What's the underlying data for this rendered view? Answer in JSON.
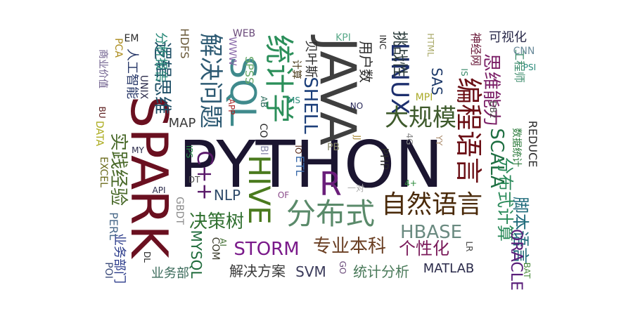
{
  "words": [
    {
      "t": "PYTHON",
      "c": "#1b1530"
    },
    {
      "t": "SPARK",
      "c": "#6a1020"
    },
    {
      "t": "JAVA",
      "c": "#3f3f3f"
    },
    {
      "t": "SQL",
      "c": "#3f8a8c"
    },
    {
      "t": "HIVE",
      "c": "#4a7a1e"
    },
    {
      "t": "R",
      "c": "#6a1e7a"
    },
    {
      "t": "统计学",
      "c": "#2b8f5a"
    },
    {
      "t": "LINUX",
      "c": "#1d2f6e"
    },
    {
      "t": "分布式",
      "c": "#5a8a6a"
    },
    {
      "t": "自然语言",
      "c": "#4a2a0a"
    },
    {
      "t": "编程语言",
      "c": "#6a0e14"
    },
    {
      "t": "大规模",
      "c": "#3e5a2c"
    },
    {
      "t": "解决问题",
      "c": "#2d5a73"
    },
    {
      "t": "SHELL",
      "c": "#1c3f7a"
    },
    {
      "t": "逻辑思维",
      "c": "#1e4f66"
    },
    {
      "t": "实践经验",
      "c": "#4a6a2a"
    },
    {
      "t": "SCALA",
      "c": "#1e6f42"
    },
    {
      "t": "思维能力",
      "c": "#7a1e66"
    },
    {
      "t": "专业本科",
      "c": "#6a3e22"
    },
    {
      "t": "HBASE",
      "c": "#6a8a80"
    },
    {
      "t": "STORM",
      "c": "#7a1a8a"
    },
    {
      "t": "个性化",
      "c": "#7a1a5a"
    },
    {
      "t": "决策树",
      "c": "#2f6f2f"
    },
    {
      "t": "分布式计算",
      "c": "#2a8a5a"
    },
    {
      "t": "脚本语言",
      "c": "#1e6a7a"
    },
    {
      "t": "ORACLE",
      "c": "#5a1e7a"
    },
    {
      "t": "MYSQL",
      "c": "#1e6a3a"
    },
    {
      "t": "C++",
      "c": "#5a1a6a"
    },
    {
      "t": "NLP",
      "c": "#2e4a6a"
    },
    {
      "t": "SAS",
      "c": "#1e3a6a"
    },
    {
      "t": "MAP",
      "c": "#3a3a3a"
    },
    {
      "t": "SVM",
      "c": "#3a3a5a"
    },
    {
      "t": "解决方案",
      "c": "#3a3a3a"
    },
    {
      "t": "统计分析",
      "c": "#4a7a5a"
    },
    {
      "t": "MATLAB",
      "c": "#2a2a4a"
    },
    {
      "t": "用户数",
      "c": "#2a2a2a"
    },
    {
      "t": "挑战性",
      "c": "#2a3a3a"
    },
    {
      "t": "业务部门",
      "c": "#2a3a8a"
    },
    {
      "t": "业务部",
      "c": "#3a6a5a"
    },
    {
      "t": "分析报告",
      "c": "#2a8a7a"
    },
    {
      "t": "人工智能",
      "c": "#2a3a6a"
    },
    {
      "t": "HDFS",
      "c": "#6a5a3a"
    },
    {
      "t": "WEB",
      "c": "#6a4a7a"
    },
    {
      "t": "WWW",
      "c": "#8a6aaa"
    },
    {
      "t": "SPSS",
      "c": "#6aaa6a"
    },
    {
      "t": "可视化",
      "c": "#2a2a4a"
    },
    {
      "t": "神经网",
      "c": "#6a1a3a"
    },
    {
      "t": "工程师",
      "c": "#3a8a6a"
    },
    {
      "t": "数据统计",
      "c": "#2a7a3a"
    },
    {
      "t": "REDUCE",
      "c": "#2a2a2a"
    },
    {
      "t": "EXCEL",
      "c": "#6a6a1a"
    },
    {
      "t": "DATA",
      "c": "#aaaa1a"
    },
    {
      "t": "PERL",
      "c": "#4a6a8a"
    },
    {
      "t": "POI",
      "c": "#3a4a7a"
    },
    {
      "t": "商业价值",
      "c": "#6a5a8a"
    },
    {
      "t": "PCA",
      "c": "#aa8a1a"
    },
    {
      "t": "EM",
      "c": "#2a2a2a"
    },
    {
      "t": "UNIX",
      "c": "#2a2a4a"
    },
    {
      "t": "BU",
      "c": "#5a1a1a"
    },
    {
      "t": "GBDT",
      "c": "#8a8a8a"
    },
    {
      "t": "API",
      "c": "#2a2a4a"
    },
    {
      "t": "DT",
      "c": "#4a4a4a"
    },
    {
      "t": "DL",
      "c": "#2a2a2a"
    },
    {
      "t": "COM",
      "c": "#3a3a2a"
    },
    {
      "t": "AI",
      "c": "#3a6a2a"
    },
    {
      "t": "APP",
      "c": "#aa2a2a"
    },
    {
      "t": "MY",
      "c": "#2a2a4a"
    },
    {
      "t": "IPS",
      "c": "#2a8a4a"
    },
    {
      "t": "OF",
      "c": "#8a4a8a"
    },
    {
      "t": "GO",
      "c": "#6a4a7a"
    },
    {
      "t": "ETL",
      "c": "#3a6aaa"
    },
    {
      "t": "IO",
      "c": "#5a2a1a"
    },
    {
      "t": "BI",
      "c": "#8a8aaa"
    },
    {
      "t": "AB",
      "c": "#2a6a5a"
    },
    {
      "t": "CO",
      "c": "#2a2a2a"
    },
    {
      "t": "MS",
      "c": "#2a8a7a"
    },
    {
      "t": "PB",
      "c": "#8a8a6a"
    },
    {
      "t": "NO",
      "c": "#2a2a5a"
    },
    {
      "t": "JJ",
      "c": "#aa8a3a"
    },
    {
      "t": "PHP",
      "c": "#2a2a2a"
    },
    {
      "t": "4G",
      "c": "#8a8a8a"
    },
    {
      "t": "4+",
      "c": "#2a8a3a"
    },
    {
      "t": "一对一",
      "c": "#aaaaaa"
    },
    {
      "t": "KPI",
      "c": "#5aaa8a"
    },
    {
      "t": "MPI",
      "c": "#aaaa2a"
    },
    {
      "t": "INC",
      "c": "#2a2a2a"
    },
    {
      "t": "HTML",
      "c": "#aaaa6a"
    },
    {
      "t": "IS",
      "c": "#3a8a6a"
    },
    {
      "t": "YY",
      "c": "#aa8a6a"
    },
    {
      "t": "DB2",
      "c": "#4a4a4a"
    },
    {
      "t": "LR",
      "c": "#4a4a4a"
    },
    {
      "t": "BAT",
      "c": "#4a8a3a"
    },
    {
      "t": "CNN",
      "c": "#6a8a9a"
    },
    {
      "t": "PSI",
      "c": "#2a8a7a"
    },
    {
      "t": "贝叶斯",
      "c": "#2a2a2a"
    },
    {
      "t": "计算",
      "c": "#4a3a1a"
    }
  ]
}
